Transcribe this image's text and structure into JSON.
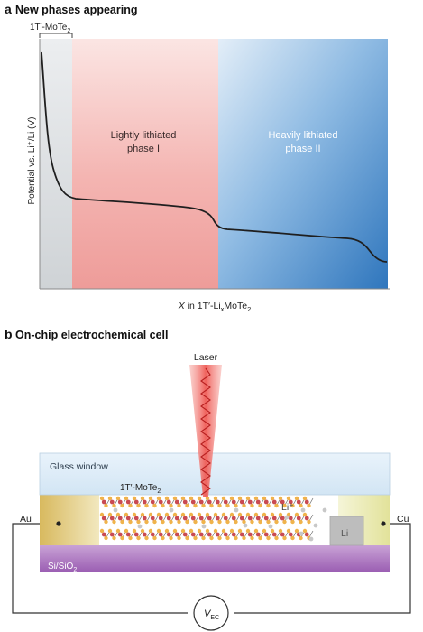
{
  "panel_a": {
    "letter": "a",
    "title": "New phases appearing",
    "bracket_label_main": "1T′-MoTe",
    "bracket_label_sub": "2",
    "region_1_line1": "Lightly lithiated",
    "region_1_line2": "phase I",
    "region_2_line1": "Heavily lithiated",
    "region_2_line2": "phase II",
    "y_axis_label": "Potential vs. Li⁺/Li (V)",
    "x_axis_label": {
      "italic": "X",
      "part1": " in 1T′-Li",
      "sub_x": "x",
      "part2": "MoTe",
      "sub_2": "2"
    },
    "colors": {
      "pristine": "#d4d7da",
      "phase1": "#f2aaa8",
      "phase2_light": "#d3e6f6",
      "phase2_dark": "#3d84c6",
      "curve": "#1f1f1f"
    }
  },
  "panel_b": {
    "letter": "b",
    "title": "On-chip electrochemical cell",
    "laser_label": "Laser",
    "glass_window_label": "Glass window",
    "mote2_label_main": "1T′-MoTe",
    "mote2_label_sub": "2",
    "li_ion_label": "Li⁺",
    "li_electrode_label": "Li",
    "au_label": "Au",
    "cu_label": "Cu",
    "substrate_label_main": "Si/SiO",
    "substrate_label_sub": "2",
    "source_label_main": "V",
    "source_label_sub": "EC",
    "colors": {
      "glass": "#dcebf7",
      "substrate": "#a36ab8",
      "au": "#dcc372",
      "cu": "#e6e6a6",
      "li_block": "#b9b9b9",
      "laser": "#f0625c",
      "atom_mo": "#c94a52",
      "atom_te": "#f0b34b",
      "li_ion": "#c8c8c8"
    }
  }
}
